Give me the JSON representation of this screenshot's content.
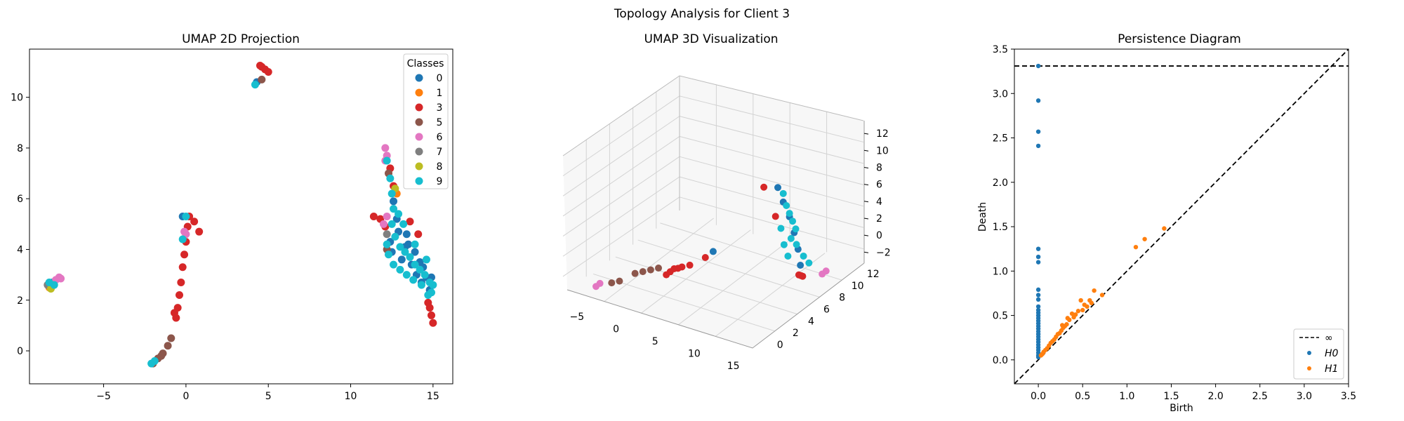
{
  "figure": {
    "title": "Topology Analysis for Client 3"
  },
  "chart_data": [
    {
      "type": "scatter",
      "title": "UMAP 2D Projection",
      "xlabel": "",
      "ylabel": "",
      "xlim": [
        -9.5,
        16.2
      ],
      "ylim": [
        -1.3,
        11.9
      ],
      "xticks": [
        -5,
        0,
        5,
        10,
        15
      ],
      "yticks": [
        0,
        2,
        4,
        6,
        8,
        10
      ],
      "grid": false,
      "legend": {
        "title": "Classes",
        "position": "top-right"
      },
      "classes": [
        {
          "name": "0",
          "color": "#1f77b4"
        },
        {
          "name": "1",
          "color": "#ff7f0e"
        },
        {
          "name": "3",
          "color": "#d62728"
        },
        {
          "name": "5",
          "color": "#8c564b"
        },
        {
          "name": "6",
          "color": "#e377c2"
        },
        {
          "name": "7",
          "color": "#7f7f7f"
        },
        {
          "name": "8",
          "color": "#bcbd22"
        },
        {
          "name": "9",
          "color": "#17becf"
        }
      ],
      "series": [
        {
          "name": "0",
          "points": [
            [
              -8.1,
              2.7
            ],
            [
              12.6,
              5.9
            ],
            [
              12.9,
              4.7
            ],
            [
              13.5,
              4.2
            ],
            [
              13.9,
              3.9
            ],
            [
              14.2,
              3.5
            ],
            [
              14.6,
              2.9
            ],
            [
              12.4,
              4.3
            ],
            [
              13.1,
              3.6
            ],
            [
              14.0,
              3.0
            ],
            [
              14.9,
              2.9
            ],
            [
              12.8,
              5.2
            ],
            [
              13.4,
              4.6
            ],
            [
              14.4,
              3.3
            ],
            [
              13.7,
              3.4
            ],
            [
              12.5,
              3.9
            ],
            [
              14.8,
              2.4
            ],
            [
              -0.2,
              5.3
            ],
            [
              4.3,
              10.6
            ],
            [
              13.3,
              4.1
            ],
            [
              14.3,
              2.7
            ]
          ]
        },
        {
          "name": "1",
          "points": [
            [
              -8.3,
              2.5
            ],
            [
              12.8,
              6.2
            ]
          ]
        },
        {
          "name": "3",
          "points": [
            [
              4.6,
              11.2
            ],
            [
              4.8,
              11.1
            ],
            [
              5.0,
              11.0
            ],
            [
              4.5,
              11.25
            ],
            [
              0.2,
              5.3
            ],
            [
              0.5,
              5.1
            ],
            [
              0.8,
              4.7
            ],
            [
              0.1,
              4.9
            ],
            [
              0.0,
              4.3
            ],
            [
              -0.1,
              3.8
            ],
            [
              -0.2,
              3.3
            ],
            [
              -0.3,
              2.7
            ],
            [
              -0.4,
              2.2
            ],
            [
              -0.5,
              1.7
            ],
            [
              -0.6,
              1.3
            ],
            [
              11.4,
              5.3
            ],
            [
              11.8,
              5.2
            ],
            [
              12.1,
              4.9
            ],
            [
              14.8,
              1.7
            ],
            [
              14.9,
              1.4
            ],
            [
              15.0,
              1.1
            ],
            [
              14.7,
              1.9
            ],
            [
              12.4,
              7.2
            ],
            [
              12.6,
              6.5
            ],
            [
              13.6,
              5.1
            ],
            [
              14.1,
              4.6
            ],
            [
              -0.7,
              1.5
            ]
          ]
        },
        {
          "name": "5",
          "points": [
            [
              -2.0,
              -0.5
            ],
            [
              -1.7,
              -0.3
            ],
            [
              -1.4,
              -0.1
            ],
            [
              -1.1,
              0.2
            ],
            [
              -0.9,
              0.5
            ],
            [
              -1.5,
              -0.2
            ],
            [
              12.3,
              7.0
            ],
            [
              12.2,
              4.0
            ],
            [
              4.6,
              10.7
            ]
          ]
        },
        {
          "name": "6",
          "points": [
            [
              -7.7,
              2.9
            ],
            [
              -7.9,
              2.8
            ],
            [
              -7.6,
              2.85
            ],
            [
              12.1,
              8.0
            ],
            [
              12.2,
              7.7
            ],
            [
              12.1,
              7.5
            ],
            [
              0.0,
              4.6
            ],
            [
              -0.1,
              4.7
            ],
            [
              12.0,
              5.0
            ],
            [
              12.2,
              5.3
            ]
          ]
        },
        {
          "name": "7",
          "points": [
            [
              -8.4,
              2.6
            ],
            [
              12.2,
              4.6
            ]
          ]
        },
        {
          "name": "8",
          "points": [
            [
              -8.2,
              2.45
            ],
            [
              12.7,
              6.4
            ]
          ]
        },
        {
          "name": "9",
          "points": [
            [
              -8.0,
              2.6
            ],
            [
              -8.3,
              2.7
            ],
            [
              -2.1,
              -0.5
            ],
            [
              -1.9,
              -0.4
            ],
            [
              4.2,
              10.5
            ],
            [
              12.2,
              7.5
            ],
            [
              12.4,
              6.8
            ],
            [
              12.5,
              6.2
            ],
            [
              12.6,
              5.6
            ],
            [
              12.5,
              5.0
            ],
            [
              12.7,
              4.5
            ],
            [
              13.0,
              4.1
            ],
            [
              13.3,
              3.9
            ],
            [
              13.6,
              3.7
            ],
            [
              13.9,
              3.4
            ],
            [
              14.2,
              3.2
            ],
            [
              14.5,
              3.0
            ],
            [
              14.8,
              2.7
            ],
            [
              14.9,
              2.3
            ],
            [
              12.3,
              3.8
            ],
            [
              12.6,
              3.4
            ],
            [
              13.0,
              3.2
            ],
            [
              13.4,
              3.0
            ],
            [
              13.8,
              2.8
            ],
            [
              14.3,
              2.6
            ],
            [
              14.7,
              2.2
            ],
            [
              15.0,
              2.6
            ],
            [
              12.9,
              5.4
            ],
            [
              13.2,
              5.0
            ],
            [
              13.9,
              4.2
            ],
            [
              12.2,
              4.2
            ],
            [
              14.6,
              3.6
            ],
            [
              -0.2,
              4.4
            ],
            [
              0.0,
              5.3
            ]
          ]
        }
      ]
    },
    {
      "type": "scatter",
      "title": "UMAP 3D Visualization",
      "xlabel": "",
      "ylabel": "",
      "zlabel": "",
      "xticks": [
        -5,
        0,
        5,
        10,
        15
      ],
      "yticks": [
        0,
        2,
        4,
        6,
        8,
        10,
        12
      ],
      "zticks": [
        -2,
        0,
        2,
        4,
        6,
        8,
        10,
        12
      ],
      "grid": true,
      "series": [
        {
          "name": "3",
          "points": [
            [
              2,
              10,
              -1
            ],
            [
              3,
              10,
              0
            ],
            [
              4,
              10,
              0.5
            ],
            [
              5,
              10,
              1
            ],
            [
              6,
              9,
              1.5
            ],
            [
              2.5,
              10,
              -0.5
            ],
            [
              3.5,
              10,
              0.2
            ],
            [
              13,
              4,
              -2
            ],
            [
              12.8,
              3.5,
              -2.5
            ],
            [
              12.5,
              3,
              -3
            ],
            [
              12,
              6,
              6
            ],
            [
              11.5,
              7,
              10
            ]
          ]
        },
        {
          "name": "5",
          "points": [
            [
              -4,
              11,
              -3
            ],
            [
              -3,
              11,
              -2.5
            ],
            [
              -2,
              10,
              -2
            ],
            [
              -1,
              10,
              -1.5
            ],
            [
              0,
              10,
              -1
            ],
            [
              1,
              10,
              -0.5
            ]
          ]
        },
        {
          "name": "6",
          "points": [
            [
              -6,
              11,
              -4
            ],
            [
              -5.5,
              11,
              -3.5
            ],
            [
              14,
              2,
              -3
            ],
            [
              14.5,
              2,
              -2.5
            ]
          ]
        },
        {
          "name": "0",
          "points": [
            [
              7,
              9,
              2.5
            ],
            [
              12,
              5,
              7
            ],
            [
              12.3,
              4.5,
              5
            ],
            [
              12.6,
              4.2,
              3
            ],
            [
              12.9,
              4,
              1
            ],
            [
              13,
              3.8,
              -1
            ],
            [
              11.8,
              5.5,
              9
            ]
          ]
        },
        {
          "name": "9",
          "points": [
            [
              12,
              5,
              8
            ],
            [
              12.2,
              4.8,
              6.5
            ],
            [
              12.4,
              4.6,
              5.5
            ],
            [
              12.6,
              4.4,
              4.5
            ],
            [
              12.8,
              4.2,
              3.5
            ],
            [
              12.5,
              4.5,
              2.5
            ],
            [
              12.7,
              4,
              1.5
            ],
            [
              12.3,
              4.7,
              0.5
            ],
            [
              13.2,
              3.6,
              0
            ],
            [
              13.5,
              3.2,
              -1
            ],
            [
              11.9,
              5.2,
              4
            ],
            [
              12.1,
              5,
              2
            ]
          ]
        }
      ]
    },
    {
      "type": "scatter",
      "title": "Persistence Diagram",
      "xlabel": "Birth",
      "ylabel": "Death",
      "xlim": [
        -0.27,
        3.5
      ],
      "ylim": [
        -0.27,
        3.5
      ],
      "xticks": [
        0.0,
        0.5,
        1.0,
        1.5,
        2.0,
        2.5,
        3.0,
        3.5
      ],
      "yticks": [
        0.0,
        0.5,
        1.0,
        1.5,
        2.0,
        2.5,
        3.0,
        3.5
      ],
      "infinity_value": 3.31,
      "grid": false,
      "legend": {
        "position": "bottom-right",
        "entries": [
          "∞",
          "H0",
          "H1"
        ]
      },
      "series": [
        {
          "name": "H0",
          "color": "#1f77b4",
          "points": [
            [
              0,
              3.31
            ],
            [
              0,
              2.92
            ],
            [
              0,
              2.57
            ],
            [
              0,
              2.41
            ],
            [
              0,
              1.25
            ],
            [
              0,
              1.16
            ],
            [
              0,
              1.1
            ],
            [
              0,
              0.79
            ],
            [
              0,
              0.73
            ],
            [
              0,
              0.68
            ],
            [
              0,
              0.6
            ],
            [
              0,
              0.56
            ],
            [
              0,
              0.53
            ],
            [
              0,
              0.5
            ],
            [
              0,
              0.47
            ],
            [
              0,
              0.44
            ],
            [
              0,
              0.41
            ],
            [
              0,
              0.38
            ],
            [
              0,
              0.35
            ],
            [
              0,
              0.32
            ],
            [
              0,
              0.29
            ],
            [
              0,
              0.26
            ],
            [
              0,
              0.23
            ],
            [
              0,
              0.2
            ],
            [
              0,
              0.17
            ],
            [
              0,
              0.14
            ],
            [
              0,
              0.11
            ],
            [
              0,
              0.08
            ],
            [
              0,
              0.05
            ],
            [
              0,
              0.03
            ]
          ]
        },
        {
          "name": "H1",
          "color": "#ff7f0e",
          "points": [
            [
              1.42,
              1.48
            ],
            [
              1.2,
              1.36
            ],
            [
              1.1,
              1.27
            ],
            [
              0.72,
              0.73
            ],
            [
              0.63,
              0.78
            ],
            [
              0.58,
              0.67
            ],
            [
              0.52,
              0.62
            ],
            [
              0.48,
              0.67
            ],
            [
              0.45,
              0.55
            ],
            [
              0.42,
              0.51
            ],
            [
              0.4,
              0.48
            ],
            [
              0.38,
              0.52
            ],
            [
              0.35,
              0.45
            ],
            [
              0.32,
              0.4
            ],
            [
              0.3,
              0.38
            ],
            [
              0.28,
              0.36
            ],
            [
              0.26,
              0.33
            ],
            [
              0.24,
              0.3
            ],
            [
              0.22,
              0.29
            ],
            [
              0.2,
              0.26
            ],
            [
              0.18,
              0.23
            ],
            [
              0.16,
              0.21
            ],
            [
              0.14,
              0.19
            ],
            [
              0.12,
              0.16
            ],
            [
              0.1,
              0.13
            ],
            [
              0.08,
              0.11
            ],
            [
              0.06,
              0.09
            ],
            [
              0.05,
              0.07
            ],
            [
              0.04,
              0.06
            ],
            [
              0.03,
              0.05
            ],
            [
              0.55,
              0.6
            ],
            [
              0.5,
              0.56
            ],
            [
              0.6,
              0.64
            ],
            [
              0.33,
              0.47
            ],
            [
              0.27,
              0.39
            ]
          ]
        }
      ]
    }
  ]
}
